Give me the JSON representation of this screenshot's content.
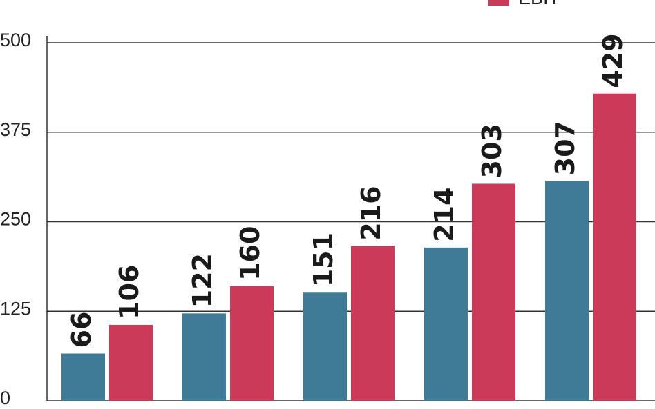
{
  "chart_data": {
    "type": "bar",
    "categories": [
      null,
      null,
      null,
      null,
      null
    ],
    "series": [
      {
        "color": "#3f7a96",
        "values": [
          66,
          122,
          151,
          214,
          307
        ]
      },
      {
        "name": "EBIT",
        "color": "#cc3a5a",
        "values": [
          106,
          160,
          216,
          303,
          429
        ]
      }
    ],
    "ylim": [
      0,
      500
    ],
    "yticks": [
      0,
      125,
      250,
      375,
      500
    ],
    "grid": true,
    "legend": "upper right"
  }
}
